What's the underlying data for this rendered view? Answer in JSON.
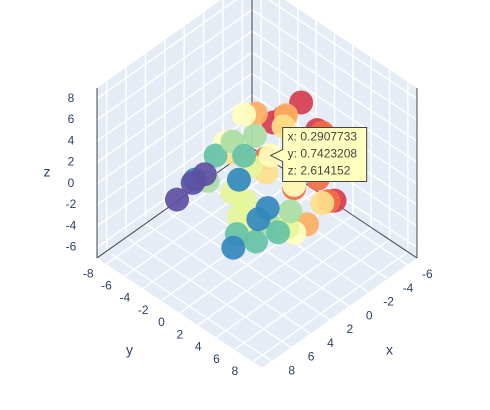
{
  "chart_data": {
    "type": "scatter3d",
    "xaxis_title": "x",
    "yaxis_title": "y",
    "zaxis_title": "z",
    "xlim": [
      -7,
      9
    ],
    "ylim": [
      -9,
      9
    ],
    "zlim": [
      -7,
      9
    ],
    "xticks": [
      -6,
      -4,
      -2,
      0,
      2,
      4,
      6,
      8
    ],
    "yticks": [
      -8,
      -6,
      -4,
      -2,
      0,
      2,
      4,
      6,
      8
    ],
    "zticks": [
      -6,
      -4,
      -2,
      0,
      2,
      4,
      6,
      8
    ],
    "colorscale": [
      "#9e0142",
      "#d53e4f",
      "#f46d43",
      "#fdae61",
      "#fee08b",
      "#ffffbf",
      "#e6f598",
      "#abdda4",
      "#66c2a5",
      "#3288bd",
      "#5e4fa2"
    ],
    "x": [
      -4.5,
      -3.8,
      -5,
      -2.9,
      -4.1,
      -3.2,
      -1.5,
      -2.2,
      -0.8,
      0.3,
      1.2,
      2.1,
      3.0,
      3.8,
      4.5,
      5.0,
      4.2,
      3.5,
      2.6,
      1.8,
      0.9,
      -0.2,
      -1.1,
      -2.0,
      -3.0,
      -3.6,
      -4.4,
      -1.8,
      0.5,
      1.5,
      2.8,
      4.0,
      -0.5,
      0.2,
      1.0,
      -2.5,
      -3.3,
      2.3,
      3.2,
      4.8,
      0.2907733,
      -1.2,
      1.7,
      -0.9,
      2.9,
      -4.0,
      3.6,
      0.7,
      -2.7,
      1.4
    ],
    "y": [
      -1.0,
      1.5,
      0.5,
      3.0,
      -2.5,
      2.2,
      4.0,
      -3.5,
      1.0,
      -4.2,
      3.5,
      -1.5,
      2.0,
      -3.8,
      -2.0,
      -4.5,
      0.8,
      3.8,
      -0.5,
      4.5,
      -2.8,
      2.8,
      -1.2,
      0.0,
      -3.2,
      3.6,
      1.8,
      2.5,
      -1.8,
      0.3,
      4.2,
      1.2,
      -3.0,
      3.2,
      -0.8,
      1.6,
      -0.5,
      -4.0,
      -2.2,
      -3.0,
      0.7423208,
      4.8,
      2.6,
      -4.6,
      0.6,
      -3.5,
      2.9,
      -2.3,
      3.9,
      -0.2
    ],
    "z": [
      3.5,
      2.8,
      0.5,
      4.0,
      1.5,
      -1.0,
      3.0,
      2.5,
      4.8,
      1.0,
      -2.0,
      3.8,
      -3.0,
      0.0,
      2.0,
      -1.5,
      -3.5,
      1.5,
      -4.0,
      0.5,
      -2.5,
      -3.8,
      -1.0,
      4.5,
      -2.0,
      -2.5,
      2.0,
      -4.2,
      -3.0,
      5.0,
      -1.0,
      3.0,
      3.8,
      1.2,
      -4.5,
      0.0,
      -3.5,
      -1.2,
      2.8,
      0.8,
      2.614152,
      -0.5,
      -2.2,
      -1.0,
      4.2,
      0.5,
      0.0,
      -4.6,
      -1.8,
      1.8
    ],
    "hover": {
      "point": 40,
      "text": [
        "x: 0.2907733",
        "y: 0.7423208",
        "z: 2.614152"
      ]
    }
  }
}
